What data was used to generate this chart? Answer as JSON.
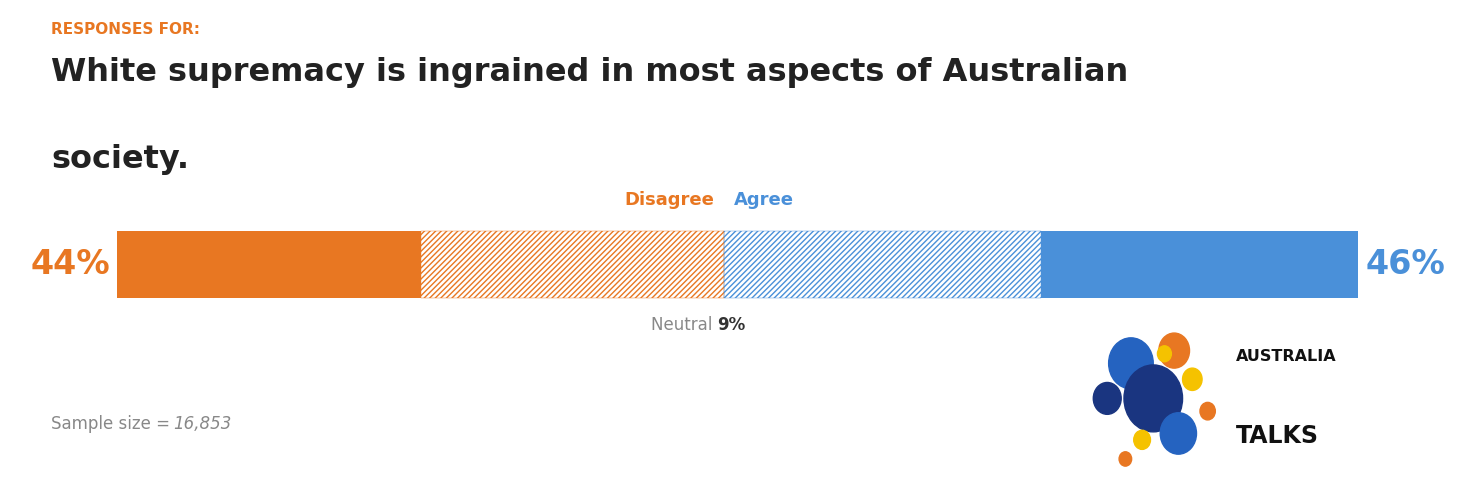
{
  "title_label": "RESPONSES FOR:",
  "title_line1": "White supremacy is ingrained in most aspects of Australian",
  "title_line2": "society.",
  "disagree_pct": "44%",
  "agree_pct": "46%",
  "neutral_pct": 9,
  "sample_size": "16,853",
  "orange": "#E87722",
  "blue": "#4A90D9",
  "bg": "#FFFFFF",
  "title_label_color": "#E87722",
  "title_color": "#222222",
  "neutral_text_color": "#888888",
  "neutral_pct_color": "#333333",
  "sample_color": "#888888",
  "disagree_label": "Disagree",
  "agree_label": "Agree",
  "neutral_label": "Neutral",
  "f_sd": 0.2444,
  "f_wd": 0.2444,
  "f_wa": 0.2556,
  "f_sa": 0.2556,
  "logo_circles": [
    [
      3.2,
      7.2,
      1.6,
      "#2563C0"
    ],
    [
      6.3,
      8.0,
      1.1,
      "#E87722"
    ],
    [
      1.5,
      5.0,
      1.0,
      "#1A3580"
    ],
    [
      4.8,
      5.0,
      2.1,
      "#1A3580"
    ],
    [
      7.6,
      6.2,
      0.7,
      "#F5C200"
    ],
    [
      4.0,
      2.4,
      0.6,
      "#F5C200"
    ],
    [
      6.6,
      2.8,
      1.3,
      "#2563C0"
    ],
    [
      5.6,
      7.8,
      0.5,
      "#F5C200"
    ],
    [
      8.7,
      4.2,
      0.55,
      "#E87722"
    ],
    [
      2.8,
      1.2,
      0.45,
      "#E87722"
    ]
  ]
}
